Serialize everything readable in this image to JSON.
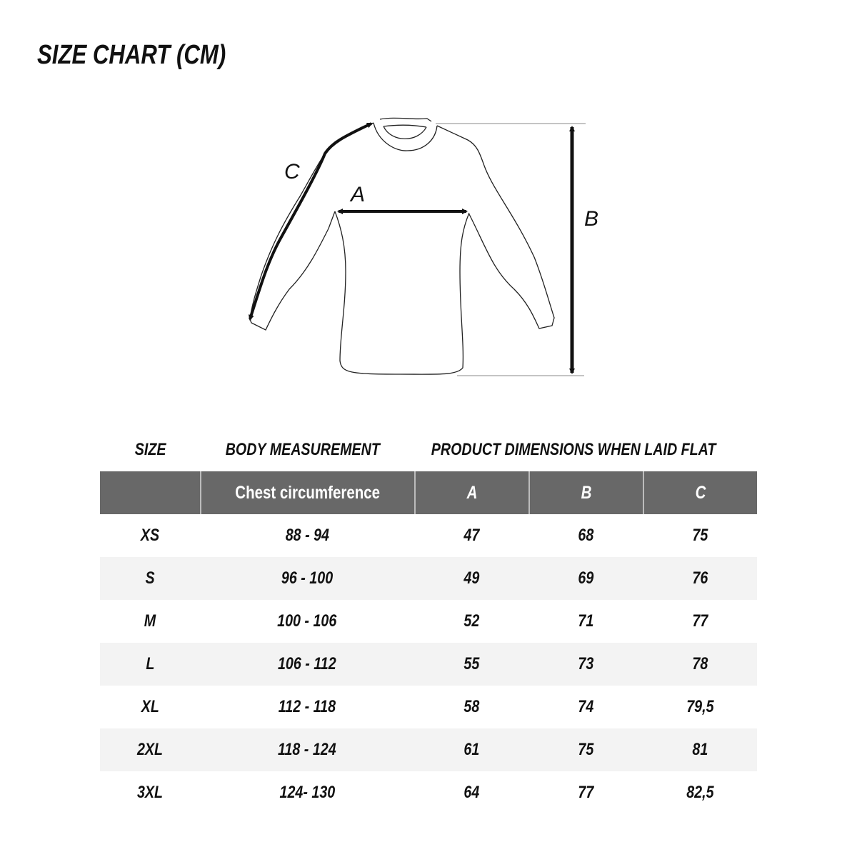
{
  "title": "SIZE CHART (CM)",
  "diagram": {
    "labels": {
      "a": "A",
      "b": "B",
      "c": "C"
    }
  },
  "table": {
    "group_headers": {
      "size": "SIZE",
      "body": "BODY MEASUREMENT",
      "product": "PRODUCT DIMENSIONS WHEN LAID FLAT"
    },
    "columns": [
      "",
      "Chest circumference",
      "A",
      "B",
      "C"
    ],
    "rows": [
      [
        "XS",
        "88 - 94",
        "47",
        "68",
        "75"
      ],
      [
        "S",
        "96 - 100",
        "49",
        "69",
        "76"
      ],
      [
        "M",
        "100 - 106",
        "52",
        "71",
        "77"
      ],
      [
        "L",
        "106 - 112",
        "55",
        "73",
        "78"
      ],
      [
        "XL",
        "112 - 118",
        "58",
        "74",
        "79,5"
      ],
      [
        "2XL",
        "118 - 124",
        "61",
        "75",
        "81"
      ],
      [
        "3XL",
        "124- 130",
        "64",
        "77",
        "82,5"
      ]
    ]
  },
  "colors": {
    "header_bg": "#686868",
    "alt_row_bg": "#f3f3f3",
    "text": "#111111"
  }
}
